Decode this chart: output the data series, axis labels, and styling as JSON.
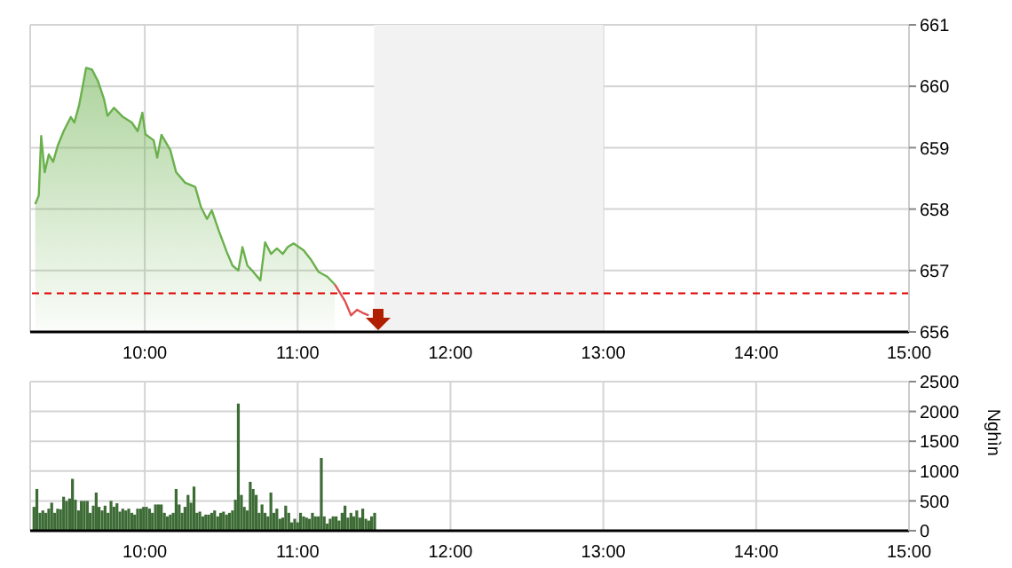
{
  "chart_data": [
    {
      "type": "area",
      "xlim": [
        9.25,
        15
      ],
      "xticks": [
        {
          "value": 10,
          "label": "10:00"
        },
        {
          "value": 11,
          "label": "11:00"
        },
        {
          "value": 12,
          "label": "12:00"
        },
        {
          "value": 13,
          "label": "13:00"
        },
        {
          "value": 14,
          "label": "14:00"
        },
        {
          "value": 15,
          "label": "15:00"
        }
      ],
      "ylim": [
        656,
        661
      ],
      "yticks": [
        656,
        657,
        658,
        659,
        660,
        661
      ],
      "grid": true,
      "series": [
        {
          "color": "#6ab04c",
          "x": [
            9.283,
            9.306,
            9.322,
            9.345,
            9.372,
            9.4,
            9.43,
            9.469,
            9.516,
            9.539,
            9.57,
            9.616,
            9.655,
            9.694,
            9.733,
            9.756,
            9.798,
            9.857,
            9.915,
            9.953,
            9.984,
            10.004,
            10.058,
            10.081,
            10.109,
            10.167,
            10.205,
            10.264,
            10.33,
            10.368,
            10.407,
            10.438,
            10.484,
            10.535,
            10.574,
            10.612,
            10.639,
            10.671,
            10.709,
            10.756,
            10.787,
            10.826,
            10.864,
            10.903,
            10.934,
            10.973,
            11.039,
            11.089,
            11.136,
            11.194,
            11.244
          ],
          "values": [
            658.08,
            658.22,
            659.19,
            658.6,
            658.89,
            658.77,
            659.03,
            659.27,
            659.5,
            659.41,
            659.69,
            660.3,
            660.27,
            660.08,
            659.79,
            659.52,
            659.65,
            659.5,
            659.41,
            659.27,
            659.57,
            659.22,
            659.12,
            658.84,
            659.21,
            658.96,
            658.6,
            658.43,
            658.36,
            658.03,
            657.84,
            657.98,
            657.65,
            657.31,
            657.08,
            657.0,
            657.38,
            657.08,
            656.98,
            656.84,
            657.46,
            657.27,
            657.36,
            657.27,
            657.38,
            657.44,
            657.33,
            657.17,
            656.98,
            656.9,
            656.77
          ]
        },
        {
          "type": "line",
          "color": "#e05050",
          "x": [
            11.244,
            11.31,
            11.349,
            11.388,
            11.426,
            11.465
          ],
          "values": [
            656.77,
            656.5,
            656.27,
            656.36,
            656.31,
            656.27
          ]
        }
      ],
      "ref_lines": [
        {
          "axis": "y",
          "value": 656.63,
          "color": "#e00000",
          "line_style": "dashed"
        }
      ],
      "bands": [
        {
          "axis": "x",
          "from": 11.5,
          "to": 13,
          "color": "#f2f2f2"
        }
      ]
    },
    {
      "type": "bar",
      "ylabel": "Nghìn",
      "xlim": [
        9.25,
        15
      ],
      "xticks": [
        {
          "value": 10,
          "label": "10:00"
        },
        {
          "value": 11,
          "label": "11:00"
        },
        {
          "value": 12,
          "label": "12:00"
        },
        {
          "value": 13,
          "label": "13:00"
        },
        {
          "value": 14,
          "label": "14:00"
        },
        {
          "value": 15,
          "label": "15:00"
        }
      ],
      "ylim": [
        0,
        2500
      ],
      "yticks": [
        0,
        500,
        1000,
        1500,
        2000,
        2500
      ],
      "grid": true,
      "x": [
        9.275,
        9.294,
        9.314,
        9.333,
        9.353,
        9.372,
        9.391,
        9.411,
        9.43,
        9.449,
        9.469,
        9.488,
        9.508,
        9.527,
        9.546,
        9.566,
        9.585,
        9.604,
        9.624,
        9.643,
        9.663,
        9.682,
        9.701,
        9.721,
        9.74,
        9.76,
        9.779,
        9.798,
        9.818,
        9.837,
        9.856,
        9.876,
        9.895,
        9.915,
        9.934,
        9.953,
        9.973,
        9.992,
        10.011,
        10.031,
        10.05,
        10.07,
        10.089,
        10.108,
        10.128,
        10.147,
        10.167,
        10.186,
        10.205,
        10.225,
        10.244,
        10.263,
        10.283,
        10.302,
        10.322,
        10.341,
        10.36,
        10.38,
        10.399,
        10.418,
        10.438,
        10.457,
        10.477,
        10.496,
        10.515,
        10.535,
        10.554,
        10.574,
        10.593,
        10.612,
        10.632,
        10.651,
        10.67,
        10.69,
        10.709,
        10.729,
        10.748,
        10.767,
        10.787,
        10.806,
        10.825,
        10.845,
        10.864,
        10.884,
        10.903,
        10.922,
        10.942,
        10.961,
        10.981,
        11.0,
        11.019,
        11.039,
        11.058,
        11.077,
        11.097,
        11.116,
        11.136,
        11.155,
        11.174,
        11.194,
        11.213,
        11.232,
        11.252,
        11.271,
        11.291,
        11.31,
        11.329,
        11.349,
        11.368,
        11.387,
        11.407,
        11.426,
        11.446,
        11.465,
        11.484,
        11.504
      ],
      "series": [
        {
          "color": "#3d6b35",
          "values": [
            400,
            700,
            300,
            340,
            300,
            370,
            470,
            300,
            370,
            360,
            570,
            500,
            540,
            870,
            520,
            340,
            500,
            500,
            500,
            300,
            420,
            640,
            400,
            340,
            420,
            300,
            500,
            400,
            460,
            320,
            370,
            340,
            370,
            300,
            270,
            370,
            370,
            400,
            400,
            370,
            300,
            440,
            440,
            440,
            300,
            240,
            270,
            300,
            700,
            440,
            300,
            400,
            600,
            470,
            740,
            300,
            320,
            240,
            270,
            270,
            300,
            340,
            240,
            300,
            320,
            270,
            300,
            340,
            520,
            2130,
            600,
            400,
            340,
            820,
            700,
            600,
            300,
            440,
            300,
            240,
            640,
            300,
            370,
            200,
            220,
            420,
            300,
            140,
            200,
            140,
            300,
            240,
            220,
            200,
            300,
            240,
            240,
            1220,
            240,
            120,
            200,
            240,
            240,
            170,
            300,
            420,
            220,
            300,
            240,
            340,
            220,
            370,
            200,
            170,
            240,
            300
          ]
        }
      ]
    }
  ]
}
